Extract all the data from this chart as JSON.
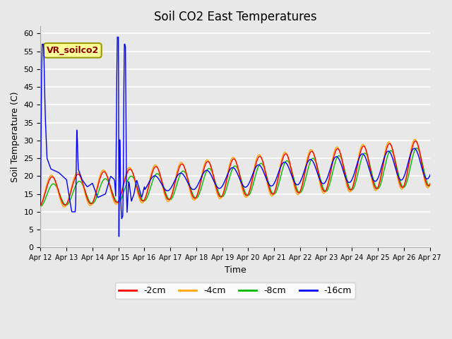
{
  "title": "Soil CO2 East Temperatures",
  "xlabel": "Time",
  "ylabel": "Soil Temperature (C)",
  "ylim": [
    0,
    62
  ],
  "colors": {
    "2cm": "#ff0000",
    "4cm": "#ffa500",
    "8cm": "#00bb00",
    "16cm": "#0000ff"
  },
  "legend_labels": [
    "-2cm",
    "-4cm",
    "-8cm",
    "-16cm"
  ],
  "annotation_text": "VR_soilco2",
  "bg_color": "#e8e8e8",
  "fig_color": "#e8e8e8",
  "xtick_labels": [
    "Apr 12",
    "Apr 13",
    "Apr 14",
    "Apr 15",
    "Apr 16",
    "Apr 17",
    "Apr 18",
    "Apr 19",
    "Apr 20",
    "Apr 21",
    "Apr 22",
    "Apr 23",
    "Apr 24",
    "Apr 25",
    "Apr 26",
    "Apr 27"
  ],
  "line_width": 1.0,
  "title_fontsize": 12
}
